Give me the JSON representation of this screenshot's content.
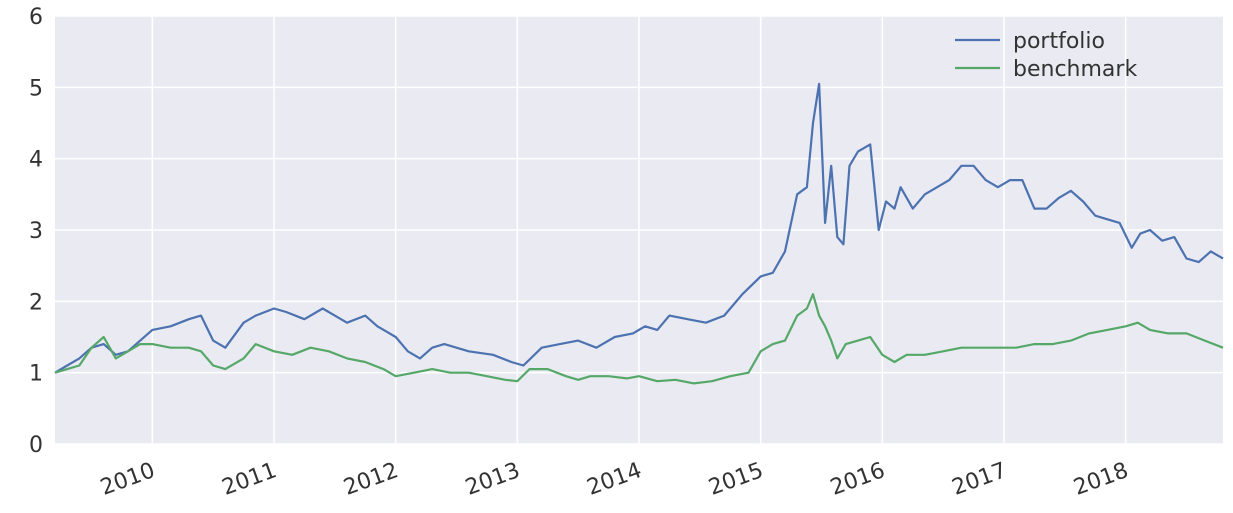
{
  "chart_data": {
    "type": "line",
    "title": "",
    "xlabel": "",
    "ylabel": "",
    "xlim": [
      2009.2,
      2018.8
    ],
    "ylim": [
      0,
      6
    ],
    "yticks": [
      "0",
      "1",
      "2",
      "3",
      "4",
      "5",
      "6"
    ],
    "xticks": [
      "2010",
      "2011",
      "2012",
      "2013",
      "2014",
      "2015",
      "2016",
      "2017",
      "2018"
    ],
    "grid": true,
    "legend": "top-right",
    "series": [
      {
        "name": "portfolio",
        "color": "#4c72b0",
        "x": [
          2009.2,
          2009.3,
          2009.4,
          2009.5,
          2009.6,
          2009.7,
          2009.8,
          2009.9,
          2010.0,
          2010.15,
          2010.3,
          2010.4,
          2010.5,
          2010.6,
          2010.75,
          2010.85,
          2011.0,
          2011.1,
          2011.25,
          2011.4,
          2011.5,
          2011.6,
          2011.75,
          2011.85,
          2012.0,
          2012.1,
          2012.2,
          2012.3,
          2012.4,
          2012.5,
          2012.6,
          2012.8,
          2012.95,
          2013.05,
          2013.2,
          2013.35,
          2013.5,
          2013.65,
          2013.8,
          2013.95,
          2014.05,
          2014.15,
          2014.25,
          2014.4,
          2014.55,
          2014.7,
          2014.85,
          2015.0,
          2015.1,
          2015.2,
          2015.3,
          2015.38,
          2015.43,
          2015.48,
          2015.53,
          2015.58,
          2015.63,
          2015.68,
          2015.73,
          2015.8,
          2015.9,
          2015.97,
          2016.03,
          2016.1,
          2016.15,
          2016.25,
          2016.35,
          2016.45,
          2016.55,
          2016.65,
          2016.75,
          2016.85,
          2016.95,
          2017.05,
          2017.15,
          2017.25,
          2017.35,
          2017.45,
          2017.55,
          2017.65,
          2017.75,
          2017.85,
          2017.95,
          2018.05,
          2018.12,
          2018.2,
          2018.3,
          2018.4,
          2018.5,
          2018.6,
          2018.7,
          2018.8
        ],
        "values": [
          1.0,
          1.1,
          1.2,
          1.35,
          1.4,
          1.25,
          1.3,
          1.45,
          1.6,
          1.65,
          1.75,
          1.8,
          1.45,
          1.35,
          1.7,
          1.8,
          1.9,
          1.85,
          1.75,
          1.9,
          1.8,
          1.7,
          1.8,
          1.65,
          1.5,
          1.3,
          1.2,
          1.35,
          1.4,
          1.35,
          1.3,
          1.25,
          1.15,
          1.1,
          1.35,
          1.4,
          1.45,
          1.35,
          1.5,
          1.55,
          1.65,
          1.6,
          1.8,
          1.75,
          1.7,
          1.8,
          2.1,
          2.35,
          2.4,
          2.7,
          3.5,
          3.6,
          4.5,
          5.05,
          3.1,
          3.9,
          2.9,
          2.8,
          3.9,
          4.1,
          4.2,
          3.0,
          3.4,
          3.3,
          3.6,
          3.3,
          3.5,
          3.6,
          3.7,
          3.9,
          3.9,
          3.7,
          3.6,
          3.7,
          3.7,
          3.3,
          3.3,
          3.45,
          3.55,
          3.4,
          3.2,
          3.15,
          3.1,
          2.75,
          2.95,
          3.0,
          2.85,
          2.9,
          2.6,
          2.55,
          2.7,
          2.6
        ]
      },
      {
        "name": "benchmark",
        "color": "#55a868",
        "x": [
          2009.2,
          2009.3,
          2009.4,
          2009.5,
          2009.6,
          2009.7,
          2009.8,
          2009.9,
          2010.0,
          2010.15,
          2010.3,
          2010.4,
          2010.5,
          2010.6,
          2010.75,
          2010.85,
          2011.0,
          2011.15,
          2011.3,
          2011.45,
          2011.6,
          2011.75,
          2011.9,
          2012.0,
          2012.15,
          2012.3,
          2012.45,
          2012.6,
          2012.75,
          2012.9,
          2013.0,
          2013.1,
          2013.25,
          2013.4,
          2013.5,
          2013.6,
          2013.75,
          2013.9,
          2014.0,
          2014.15,
          2014.3,
          2014.45,
          2014.6,
          2014.75,
          2014.9,
          2015.0,
          2015.1,
          2015.2,
          2015.3,
          2015.38,
          2015.43,
          2015.48,
          2015.53,
          2015.58,
          2015.63,
          2015.7,
          2015.8,
          2015.9,
          2016.0,
          2016.1,
          2016.2,
          2016.35,
          2016.5,
          2016.65,
          2016.8,
          2016.95,
          2017.1,
          2017.25,
          2017.4,
          2017.55,
          2017.7,
          2017.85,
          2018.0,
          2018.1,
          2018.2,
          2018.35,
          2018.5,
          2018.65,
          2018.8
        ],
        "values": [
          1.0,
          1.05,
          1.1,
          1.35,
          1.5,
          1.2,
          1.3,
          1.4,
          1.4,
          1.35,
          1.35,
          1.3,
          1.1,
          1.05,
          1.2,
          1.4,
          1.3,
          1.25,
          1.35,
          1.3,
          1.2,
          1.15,
          1.05,
          0.95,
          1.0,
          1.05,
          1.0,
          1.0,
          0.95,
          0.9,
          0.88,
          1.05,
          1.05,
          0.95,
          0.9,
          0.95,
          0.95,
          0.92,
          0.95,
          0.88,
          0.9,
          0.85,
          0.88,
          0.95,
          1.0,
          1.3,
          1.4,
          1.45,
          1.8,
          1.9,
          2.1,
          1.8,
          1.65,
          1.45,
          1.2,
          1.4,
          1.45,
          1.5,
          1.25,
          1.15,
          1.25,
          1.25,
          1.3,
          1.35,
          1.35,
          1.35,
          1.35,
          1.4,
          1.4,
          1.45,
          1.55,
          1.6,
          1.65,
          1.7,
          1.6,
          1.55,
          1.55,
          1.45,
          1.35
        ]
      }
    ]
  }
}
